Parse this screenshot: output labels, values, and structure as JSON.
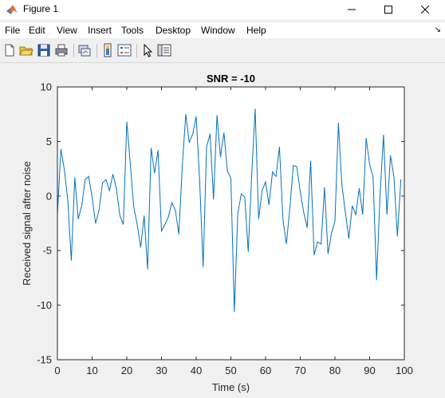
{
  "window": {
    "title": "Figure 1",
    "icon": "matlab-icon",
    "controls": [
      "minimize-icon",
      "maximize-icon",
      "close-icon"
    ]
  },
  "menu": {
    "items": [
      "File",
      "Edit",
      "View",
      "Insert",
      "Tools",
      "Desktop",
      "Window",
      "Help"
    ],
    "dock_glyph": "↘"
  },
  "toolbar": {
    "icons": [
      "new-figure-icon",
      "open-file-icon",
      "save-icon",
      "print-icon",
      "link-plot-icon",
      "insert-colorbar-icon",
      "insert-legend-icon",
      "edit-plot-pointer-icon",
      "property-inspector-icon"
    ]
  },
  "chart_data": {
    "type": "line",
    "title": "SNR = -10",
    "xlabel": "Time (s)",
    "ylabel": "Received signal after noise",
    "xlim": [
      0,
      100
    ],
    "ylim": [
      -15,
      10
    ],
    "xticks": [
      0,
      10,
      20,
      30,
      40,
      50,
      60,
      70,
      80,
      90,
      100
    ],
    "yticks": [
      -15,
      -10,
      -5,
      0,
      5,
      10
    ],
    "grid": false,
    "series_color": "#0072bd",
    "x": [
      0,
      1,
      2,
      3,
      4,
      5,
      6,
      7,
      8,
      9,
      10,
      11,
      12,
      13,
      14,
      15,
      16,
      17,
      18,
      19,
      20,
      21,
      22,
      23,
      24,
      25,
      26,
      27,
      28,
      29,
      30,
      31,
      32,
      33,
      34,
      35,
      36,
      37,
      38,
      39,
      40,
      41,
      42,
      43,
      44,
      45,
      46,
      47,
      48,
      49,
      50,
      51,
      52,
      53,
      54,
      55,
      56,
      57,
      58,
      59,
      60,
      61,
      62,
      63,
      64,
      65,
      66,
      67,
      68,
      69,
      70,
      71,
      72,
      73,
      74,
      75,
      76,
      77,
      78,
      79,
      80,
      81,
      82,
      83,
      84,
      85,
      86,
      87,
      88,
      89,
      90,
      91,
      92,
      93,
      94,
      95,
      96,
      97,
      98,
      99
    ],
    "y": [
      -1.7,
      4.3,
      2.4,
      -0.4,
      -5.9,
      1.7,
      -2.1,
      -0.9,
      1.5,
      1.8,
      -0.1,
      -2.5,
      -1.3,
      1.2,
      1.5,
      0.5,
      2.0,
      0.7,
      -1.8,
      -2.6,
      6.8,
      3.0,
      -1.0,
      -2.6,
      -4.7,
      -1.8,
      -6.7,
      4.4,
      2.1,
      4.2,
      -3.2,
      -2.6,
      -1.9,
      -0.6,
      -1.3,
      -3.5,
      2.8,
      7.5,
      4.9,
      5.7,
      7.3,
      1.4,
      -6.5,
      4.5,
      5.7,
      -0.3,
      7.4,
      3.6,
      5.8,
      2.3,
      1.6,
      -10.6,
      -1.6,
      0.2,
      -0.1,
      -5.1,
      1.9,
      8.0,
      -2.1,
      0.5,
      1.3,
      -0.8,
      2.2,
      1.8,
      4.5,
      -2.1,
      -4.4,
      -1.1,
      2.8,
      2.7,
      0.4,
      -1.5,
      -2.9,
      3.2,
      -5.4,
      -4.2,
      -4.4,
      0.8,
      -5.3,
      -3.4,
      -2.3,
      6.7,
      1.0,
      -1.5,
      -3.9,
      -0.9,
      -1.7,
      0.7,
      -1.7,
      5.3,
      2.9,
      1.7,
      -7.7,
      0.1,
      5.6,
      -1.7,
      3.7,
      1.8,
      -3.7,
      1.5
    ]
  }
}
